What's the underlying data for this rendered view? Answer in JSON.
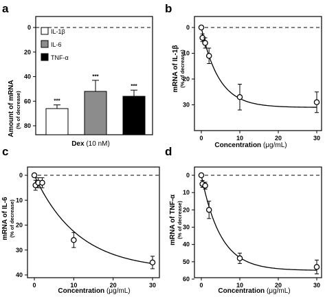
{
  "chart_data": [
    {
      "type": "bar",
      "panel": "a",
      "ylabel": "Amount of mRNA",
      "ylabel_sub": "(% of decrease)",
      "xlabel_bold": "Dex",
      "xlabel_rest": " (10 nM)",
      "ylim": [
        0,
        80
      ],
      "y_inverted": true,
      "yticks": [
        "0",
        "20",
        "40",
        "60",
        "80"
      ],
      "series": [
        {
          "name": "IL-1β",
          "value": 66,
          "error": 3,
          "color": "#ffffff",
          "sig": "***"
        },
        {
          "name": "IL-6",
          "value": 52,
          "error": 9,
          "color": "#8c8c8c",
          "sig": "***"
        },
        {
          "name": "TNF-α",
          "value": 56,
          "error": 5,
          "color": "#000000",
          "sig": "***"
        }
      ],
      "reference_line": 0
    },
    {
      "type": "scatter",
      "panel": "b",
      "ylabel": "mRNA of IL-1β",
      "ylabel_sub": "(% of decrease)",
      "xlabel_bold": "Concentration",
      "xlabel_rest": " (μg/mL)",
      "xlim": [
        0,
        30
      ],
      "ylim": [
        0,
        40
      ],
      "y_inverted": true,
      "xticks": [
        "0",
        "10",
        "20",
        "30"
      ],
      "yticks": [
        "0",
        "10",
        "20",
        "30"
      ],
      "x": [
        0,
        0.3,
        1,
        2,
        10,
        30
      ],
      "y": [
        0,
        4,
        6,
        11,
        27,
        29
      ],
      "err": [
        0.5,
        1.5,
        2,
        3,
        5,
        4
      ],
      "fit_plateau": 31,
      "fit_k": 0.22,
      "reference_line": 0
    },
    {
      "type": "scatter",
      "panel": "c",
      "ylabel": "mRNA of IL-6",
      "ylabel_sub": "(% of decrease)",
      "xlabel_bold": "Concentration",
      "xlabel_rest": " (μg/mL)",
      "xlim": [
        0,
        30
      ],
      "ylim": [
        0,
        40
      ],
      "y_inverted": true,
      "xticks": [
        "0",
        "10",
        "20",
        "30"
      ],
      "yticks": [
        "0",
        "10",
        "20",
        "30",
        "40"
      ],
      "x": [
        0,
        0.3,
        1,
        2,
        10,
        30
      ],
      "y": [
        0,
        4,
        3,
        3,
        26,
        35
      ],
      "err": [
        0.5,
        2,
        2,
        2,
        3,
        2.5
      ],
      "fit_plateau": 38,
      "fit_k": 0.09,
      "reference_line": 0
    },
    {
      "type": "scatter",
      "panel": "d",
      "ylabel": "mRNA of TNF-α",
      "ylabel_sub": "(% of decrease)",
      "xlabel_bold": "Concentration",
      "xlabel_rest": " (μg/mL)",
      "xlim": [
        0,
        30
      ],
      "ylim": [
        0,
        60
      ],
      "y_inverted": true,
      "xticks": [
        "0",
        "10",
        "20",
        "30"
      ],
      "yticks": [
        "0",
        "10",
        "20",
        "30",
        "40",
        "50",
        "60"
      ],
      "x": [
        0,
        0.3,
        1,
        2,
        10,
        30
      ],
      "y": [
        0,
        5,
        6,
        20,
        48,
        53
      ],
      "err": [
        0.5,
        2,
        2,
        5,
        3,
        4
      ],
      "fit_plateau": 55,
      "fit_k": 0.2,
      "reference_line": 0
    }
  ]
}
